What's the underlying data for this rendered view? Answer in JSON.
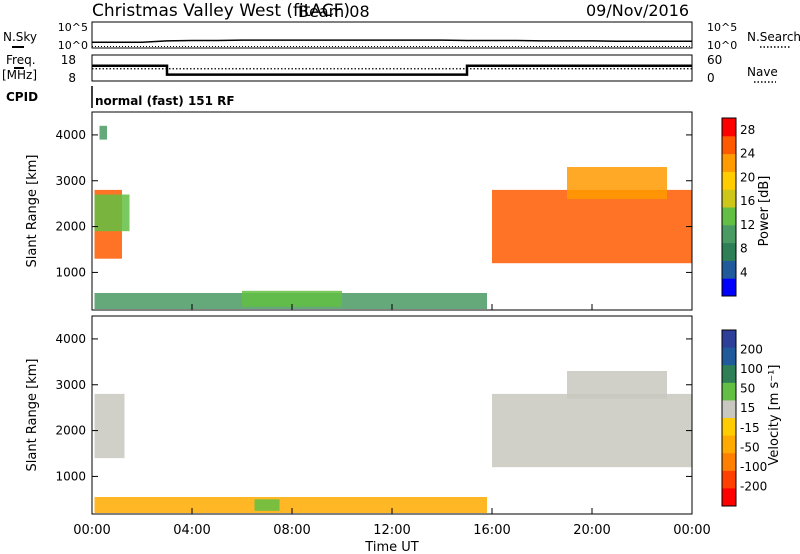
{
  "header": {
    "title": "Christmas Valley West (fitACF)",
    "beam": "Beam 08",
    "date": "09/Nov/2016"
  },
  "left_labels": {
    "nsky": "N.Sky",
    "freq": "Freq.",
    "freq_unit": "[MHz]",
    "cpid": "CPID"
  },
  "right_labels": {
    "nsearch": "N.Search",
    "nave": "Nave"
  },
  "cpid_text": "normal (fast) 151 RF",
  "colors": {
    "power": [
      "#0000ff",
      "#205a9a",
      "#2e7f56",
      "#4a9a64",
      "#62bf43",
      "#cfc61a",
      "#ffcc00",
      "#ff9a00",
      "#ff5a00",
      "#ff0000"
    ],
    "velocity_neg": [
      "#ffcc00",
      "#ffaa00",
      "#ff8000",
      "#ff4000",
      "#ff0000"
    ],
    "velocity_pos": [
      "#2e3f9a",
      "#205a9a",
      "#2e7f56",
      "#62bf43"
    ],
    "ground": "#c8c8c0",
    "line": "#000000"
  },
  "chart_data": [
    {
      "type": "line",
      "name": "noise-panel",
      "left_ticks": [
        "10^5",
        "10^0"
      ],
      "right_ticks": [
        "10^5",
        "10^0"
      ],
      "x": [
        0,
        1,
        2,
        3,
        4,
        5,
        6,
        7,
        8,
        9,
        10,
        11,
        12,
        13,
        14,
        15,
        16,
        17,
        18,
        19,
        20,
        21,
        22,
        23,
        24
      ],
      "series": [
        {
          "name": "N.Sky",
          "values": [
            1,
            1,
            1,
            1.4,
            1.5,
            1.5,
            1.6,
            1.6,
            1.6,
            1.6,
            1.6,
            1.6,
            1.6,
            1.6,
            1.6,
            1.5,
            1.5,
            1.5,
            1.4,
            1.4,
            1.4,
            1.3,
            1.3,
            1.3,
            1.3
          ]
        }
      ]
    },
    {
      "type": "line",
      "name": "freq-nave-panel",
      "left_ticks": [
        "18",
        "8"
      ],
      "right_ticks": [
        "60",
        "0"
      ],
      "x": [
        0,
        3,
        3,
        15,
        15,
        24
      ],
      "series": [
        {
          "name": "Freq",
          "values": [
            14,
            14,
            10,
            10,
            14,
            14
          ]
        },
        {
          "name": "Nave",
          "values": [
            28,
            28,
            28,
            28,
            28,
            28
          ]
        }
      ]
    },
    {
      "type": "heatmap",
      "name": "power",
      "title": "",
      "xlabel": "",
      "ylabel": "Slant Range [km]",
      "yticks": [
        "1000",
        "2000",
        "3000",
        "4000"
      ],
      "ylim": [
        180,
        4500
      ],
      "xlim": [
        0,
        24
      ],
      "colorbar_label": "Power [dB]",
      "colorbar_ticks": [
        "4",
        "8",
        "12",
        "16",
        "20",
        "24",
        "28"
      ],
      "regions": [
        {
          "x": [
            0.1,
            1.2
          ],
          "y": [
            1300,
            2800
          ],
          "level": 26
        },
        {
          "x": [
            0.1,
            1.5
          ],
          "y": [
            1900,
            2700
          ],
          "level": 14
        },
        {
          "x": [
            0.3,
            0.6
          ],
          "y": [
            3900,
            4200
          ],
          "level": 10
        },
        {
          "x": [
            0.1,
            15.8
          ],
          "y": [
            200,
            550
          ],
          "level": 9
        },
        {
          "x": [
            6,
            10
          ],
          "y": [
            250,
            600
          ],
          "level": 14
        },
        {
          "x": [
            16,
            24
          ],
          "y": [
            1200,
            2800
          ],
          "level": 27
        },
        {
          "x": [
            19,
            23
          ],
          "y": [
            2600,
            3300
          ],
          "level": 24
        }
      ]
    },
    {
      "type": "heatmap",
      "name": "velocity",
      "title": "",
      "xlabel": "Time UT",
      "ylabel": "Slant Range [km]",
      "xticks": [
        "00:00",
        "04:00",
        "08:00",
        "12:00",
        "16:00",
        "20:00",
        "00:00"
      ],
      "yticks": [
        "1000",
        "2000",
        "3000",
        "4000"
      ],
      "ylim": [
        180,
        4500
      ],
      "xlim": [
        0,
        24
      ],
      "colorbar_label": "Velocity [m s⁻¹]",
      "colorbar_ticks": [
        "200",
        "100",
        "50",
        "15",
        "-15",
        "-50",
        "-100",
        "-200"
      ],
      "regions": [
        {
          "x": [
            0.1,
            1.3
          ],
          "y": [
            1400,
            2800
          ],
          "value": "ground"
        },
        {
          "x": [
            0.1,
            15.8
          ],
          "y": [
            200,
            550
          ],
          "value": -60
        },
        {
          "x": [
            6.5,
            7.5
          ],
          "y": [
            250,
            500
          ],
          "value": 30
        },
        {
          "x": [
            16,
            24
          ],
          "y": [
            1200,
            2800
          ],
          "value": "ground"
        },
        {
          "x": [
            19,
            23
          ],
          "y": [
            2700,
            3300
          ],
          "value": "ground"
        }
      ]
    }
  ]
}
